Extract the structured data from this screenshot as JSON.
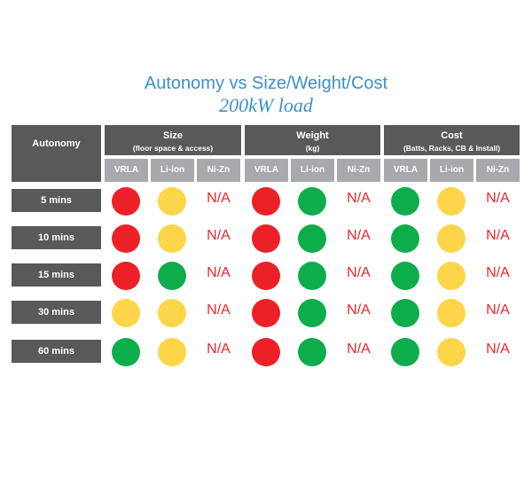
{
  "title": "Autonomy vs Size/Weight/Cost",
  "subtitle": "200kW load",
  "colors": {
    "red": "#ec2127",
    "yellow": "#fdd549",
    "green": "#0ead4b",
    "na_text": "#e8262c"
  },
  "header": {
    "autonomy": "Autonomy",
    "groups": [
      {
        "label": "Size",
        "sub": "(floor space & access)"
      },
      {
        "label": "Weight",
        "sub": "(kg)"
      },
      {
        "label": "Cost",
        "sub": "(Batts, Racks, CB & Install)"
      }
    ],
    "chemistries": [
      "VRLA",
      "Li-ion",
      "Ni-Zn"
    ]
  },
  "rows": [
    {
      "label": "5 mins",
      "cells": [
        "red",
        "yellow",
        "N/A",
        "red",
        "green",
        "N/A",
        "green",
        "yellow",
        "N/A"
      ]
    },
    {
      "label": "10 mins",
      "cells": [
        "red",
        "yellow",
        "N/A",
        "red",
        "green",
        "N/A",
        "green",
        "yellow",
        "N/A"
      ]
    },
    {
      "label": "15 mins",
      "cells": [
        "red",
        "green",
        "N/A",
        "red",
        "green",
        "N/A",
        "green",
        "yellow",
        "N/A"
      ]
    },
    {
      "label": "30 mins",
      "cells": [
        "yellow",
        "yellow",
        "N/A",
        "red",
        "green",
        "N/A",
        "green",
        "yellow",
        "N/A"
      ]
    },
    {
      "label": "60 mins",
      "cells": [
        "green",
        "yellow",
        "N/A",
        "red",
        "green",
        "N/A",
        "green",
        "yellow",
        "N/A"
      ]
    }
  ]
}
